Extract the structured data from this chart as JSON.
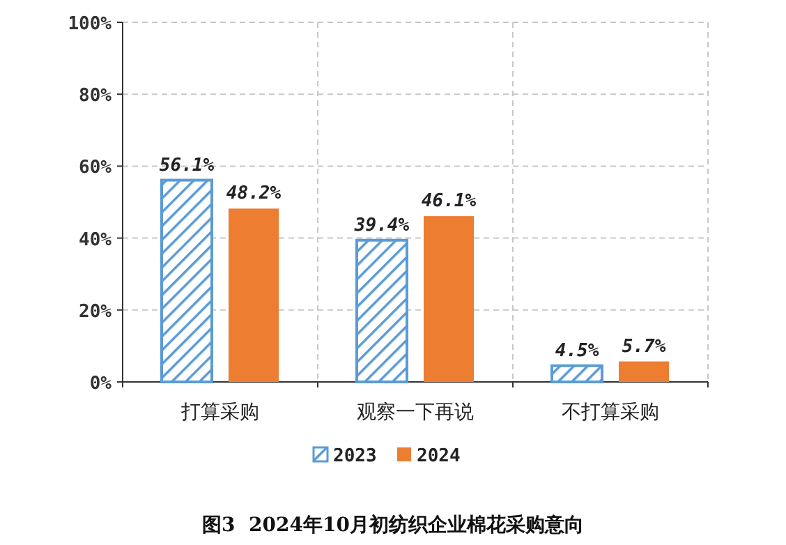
{
  "chart_data": {
    "type": "bar",
    "title": "图3  2024年10月初纺织企业棉花采购意向",
    "categories": [
      "打算采购",
      "观察一下再说",
      "不打算采购"
    ],
    "series": [
      {
        "name": "2023",
        "color": "#5b9bd5",
        "values": [
          56.1,
          39.4,
          4.5
        ],
        "value_labels": [
          "56.1%",
          "39.4%",
          "4.5%"
        ]
      },
      {
        "name": "2024",
        "color": "#ed7d31",
        "values": [
          48.2,
          46.1,
          5.7
        ],
        "value_labels": [
          "48.2%",
          "46.1%",
          "5.7%"
        ]
      }
    ],
    "ylim": [
      0,
      100
    ],
    "yticks": [
      {
        "value": 0,
        "label": "0%"
      },
      {
        "value": 20,
        "label": "20%"
      },
      {
        "value": 40,
        "label": "40%"
      },
      {
        "value": 60,
        "label": "60%"
      },
      {
        "value": 80,
        "label": "80%"
      },
      {
        "value": 100,
        "label": "100%"
      }
    ],
    "grid": true,
    "legend": "bottom"
  }
}
